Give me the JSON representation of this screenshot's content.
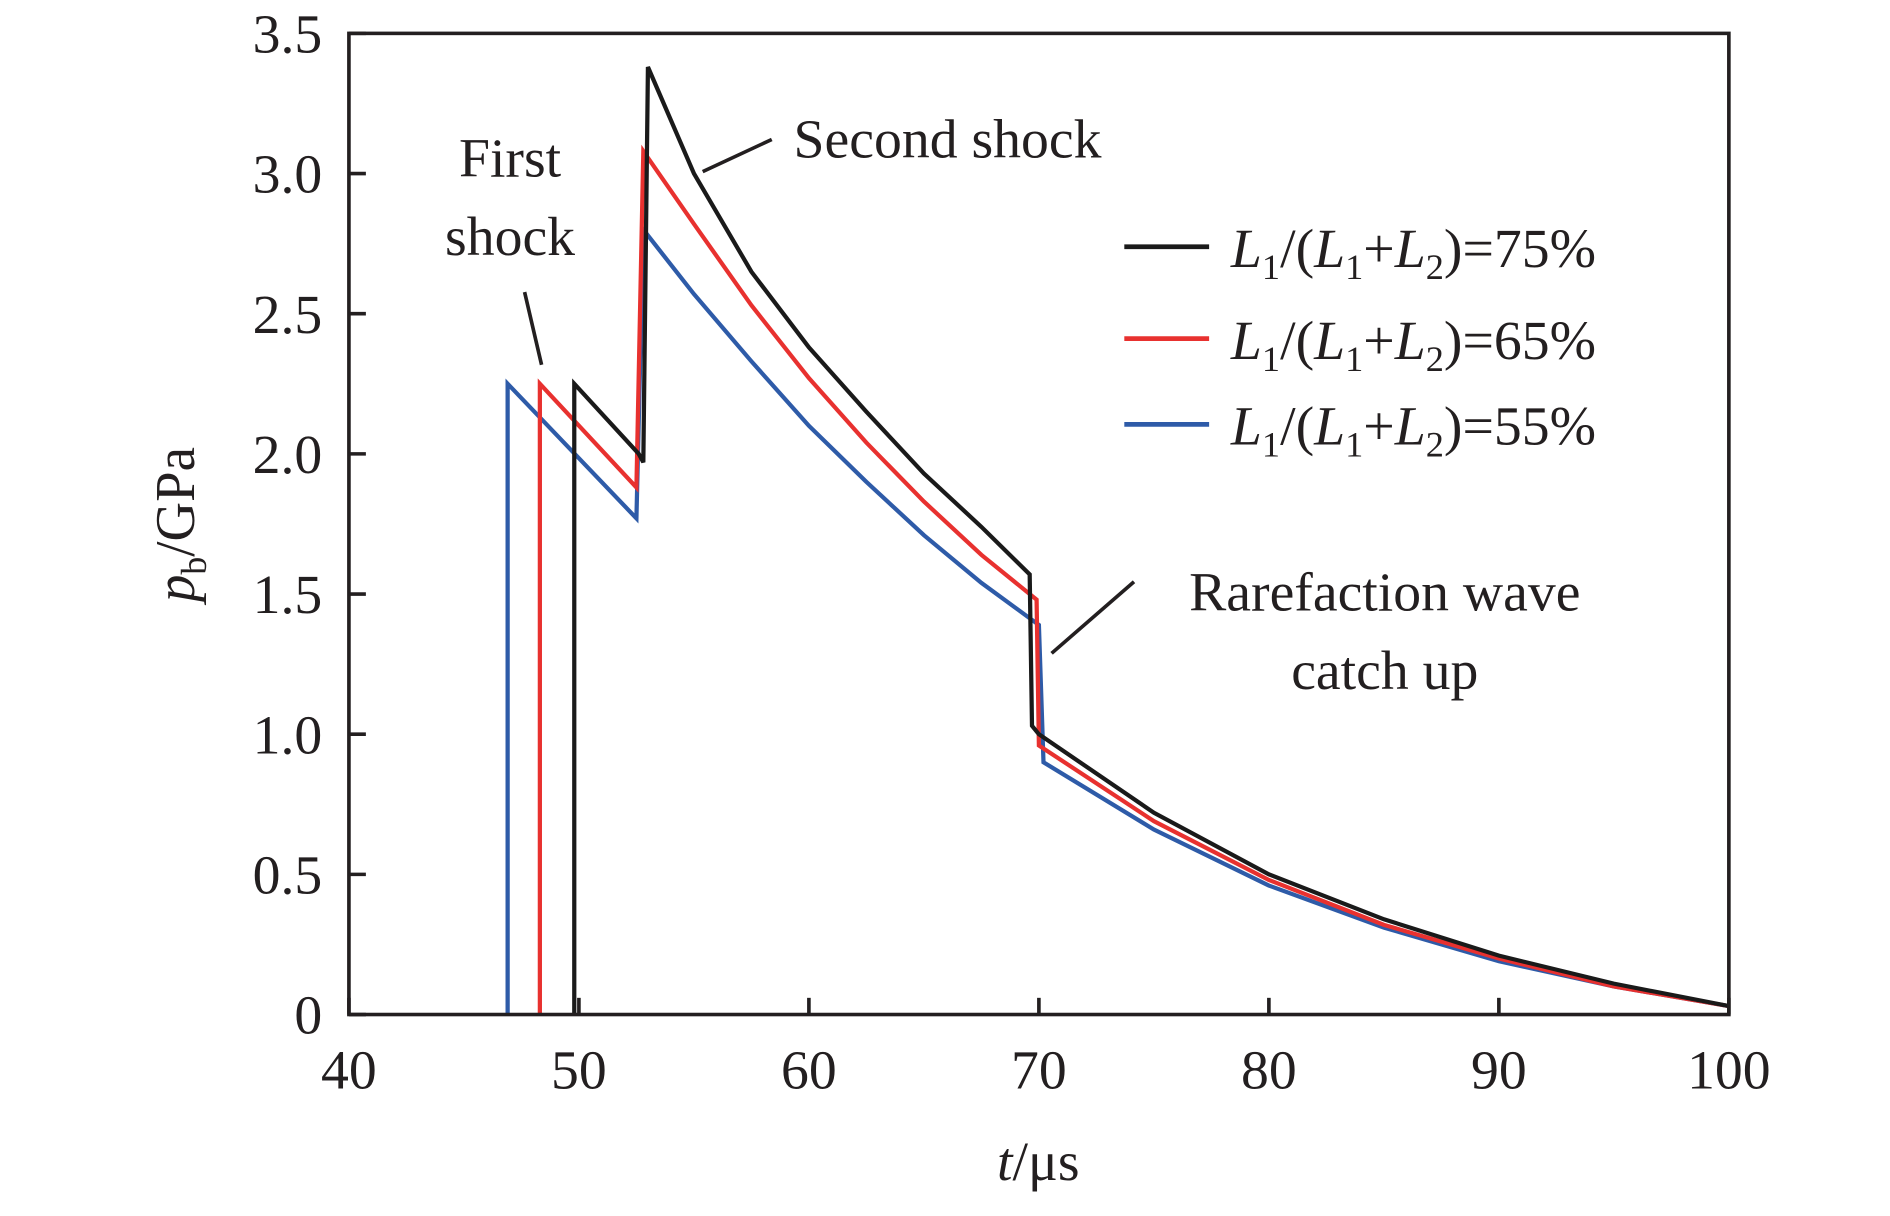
{
  "chart_data": {
    "type": "line",
    "title": "",
    "xlabel": "t/μs",
    "ylabel": "pb/GPa",
    "xlabel_parts": {
      "var": "t",
      "unit": "/μs"
    },
    "ylabel_parts": {
      "var": "p",
      "sub": "b",
      "unit": "/GPa"
    },
    "xlim": [
      40,
      100
    ],
    "ylim": [
      0,
      3.5
    ],
    "xticks": [
      40,
      50,
      60,
      70,
      80,
      90,
      100
    ],
    "xtick_labels": [
      "40",
      "50",
      "60",
      "70",
      "80",
      "90",
      "100"
    ],
    "yticks": [
      0,
      0.5,
      1.0,
      1.5,
      2.0,
      2.5,
      3.0,
      3.5
    ],
    "ytick_labels": [
      "0",
      "0.5",
      "1.0",
      "1.5",
      "2.0",
      "2.5",
      "3.0",
      "3.5"
    ],
    "grid": false,
    "legend_position": "top-right",
    "series": [
      {
        "name": "L1/(L1+L2)=75%",
        "value_label": "75%",
        "color": "#1a1a1a",
        "x": [
          49.8,
          49.8,
          52.6,
          52.8,
          53.0,
          55,
          57.5,
          60,
          62.5,
          65,
          67.5,
          69.6,
          69.7,
          70.0,
          75,
          80,
          85,
          90,
          95,
          100
        ],
        "y": [
          0,
          2.25,
          2.0,
          1.97,
          3.38,
          3.0,
          2.65,
          2.38,
          2.15,
          1.93,
          1.74,
          1.57,
          1.03,
          1.0,
          0.72,
          0.5,
          0.34,
          0.21,
          0.11,
          0.03
        ]
      },
      {
        "name": "L1/(L1+L2)=65%",
        "value_label": "65%",
        "color": "#e8312f",
        "x": [
          48.3,
          48.3,
          52.5,
          52.8,
          55,
          57.5,
          60,
          62.5,
          65,
          67.5,
          69.9,
          70.0,
          75,
          80,
          85,
          90,
          95,
          100
        ],
        "y": [
          0,
          2.25,
          1.88,
          3.08,
          2.82,
          2.53,
          2.27,
          2.04,
          1.83,
          1.64,
          1.48,
          0.96,
          0.69,
          0.48,
          0.32,
          0.2,
          0.1,
          0.03
        ]
      },
      {
        "name": "L1/(L1+L2)=55%",
        "value_label": "55%",
        "color": "#2e5ba8",
        "x": [
          46.9,
          46.9,
          52.5,
          52.8,
          55,
          57.5,
          60,
          62.5,
          65,
          67.5,
          70.0,
          70.2,
          75,
          80,
          85,
          90,
          95,
          100
        ],
        "y": [
          0,
          2.25,
          1.77,
          2.8,
          2.57,
          2.33,
          2.1,
          1.9,
          1.71,
          1.54,
          1.39,
          0.9,
          0.66,
          0.46,
          0.31,
          0.19,
          0.1,
          0.03
        ]
      }
    ],
    "annotations": [
      {
        "lines": [
          "First",
          "shock"
        ]
      },
      {
        "lines": [
          "Second shock"
        ]
      },
      {
        "lines": [
          "Rarefaction wave",
          "catch up"
        ]
      }
    ]
  }
}
